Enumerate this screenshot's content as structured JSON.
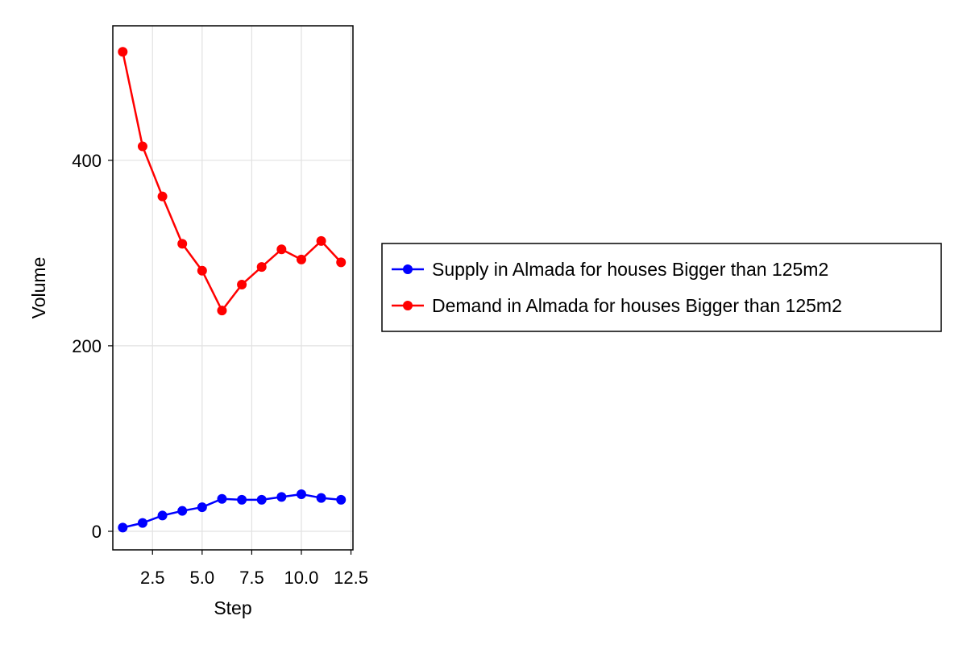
{
  "chart_data": {
    "type": "line",
    "xlabel": "Step",
    "ylabel": "Volume",
    "xlim": [
      0.5,
      12.6
    ],
    "ylim": [
      -20,
      545
    ],
    "xticks": [
      2.5,
      5.0,
      7.5,
      10.0,
      12.5
    ],
    "xtick_labels": [
      "2.5",
      "5.0",
      "7.5",
      "10.0",
      "12.5"
    ],
    "yticks": [
      0,
      200,
      400
    ],
    "ytick_labels": [
      "0",
      "200",
      "400"
    ],
    "grid": true,
    "legend_position": "right",
    "x": [
      1,
      2,
      3,
      4,
      5,
      6,
      7,
      8,
      9,
      10,
      11,
      12
    ],
    "series": [
      {
        "name": "Supply in Almada for houses Bigger than 125m2",
        "color": "#0000ff",
        "values": [
          4,
          9,
          17,
          22,
          26,
          35,
          34,
          34,
          37,
          40,
          36,
          34
        ]
      },
      {
        "name": "Demand in Almada for houses Bigger than 125m2",
        "color": "#ff0000",
        "values": [
          517,
          415,
          361,
          310,
          281,
          238,
          266,
          285,
          304,
          293,
          313,
          290
        ]
      }
    ]
  }
}
